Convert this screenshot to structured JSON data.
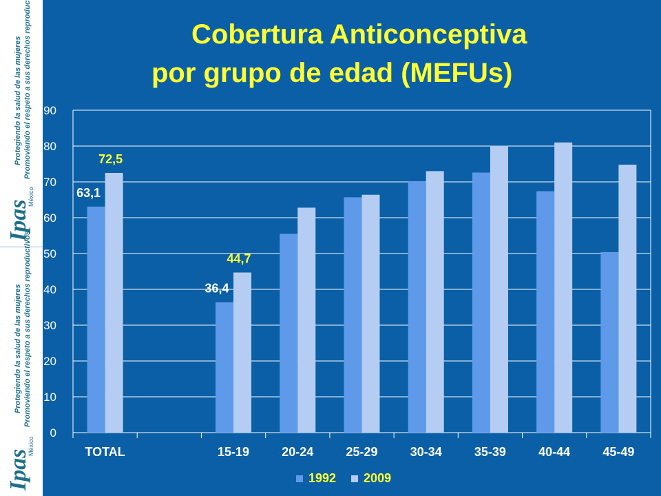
{
  "branding": {
    "logo": "Ipas",
    "country": "México",
    "tagline_1": "Protegiendo la salud de las mujeres",
    "tagline_2": "Promoviendo el respeto a sus derechos reproductivos"
  },
  "title_line1": "Cobertura Anticonceptiva",
  "title_line2": "por grupo de edad (MEFUs)",
  "chart_data": {
    "type": "bar",
    "categories": [
      "TOTAL",
      "",
      "15-19",
      "20-24",
      "25-29",
      "30-34",
      "35-39",
      "40-44",
      "45-49"
    ],
    "series": [
      {
        "name": "1992",
        "values": [
          63.1,
          null,
          36.4,
          55.5,
          65.7,
          70.2,
          72.6,
          67.4,
          50.4
        ]
      },
      {
        "name": "2009",
        "values": [
          72.5,
          null,
          44.7,
          62.8,
          66.4,
          73.0,
          80.1,
          81.0,
          74.8
        ]
      }
    ],
    "data_labels": [
      {
        "text": "63,1",
        "category": 0,
        "series": 0
      },
      {
        "text": "72,5",
        "category": 0,
        "series": 1
      },
      {
        "text": "36,4",
        "category": 2,
        "series": 0
      },
      {
        "text": "44,7",
        "category": 2,
        "series": 1
      }
    ],
    "ylim": [
      0,
      90
    ],
    "yticks": [
      0,
      10,
      20,
      30,
      40,
      50,
      60,
      70,
      80,
      90
    ],
    "grid": true,
    "legend_position": "bottom",
    "colors": {
      "s1992": "#5e99ea",
      "s2009": "#b5cdf3",
      "label_1992": "#ffffff",
      "label_2009": "#ffff33",
      "plot_bg": "#0a5fa6",
      "axis_text": "#ffffff"
    }
  }
}
